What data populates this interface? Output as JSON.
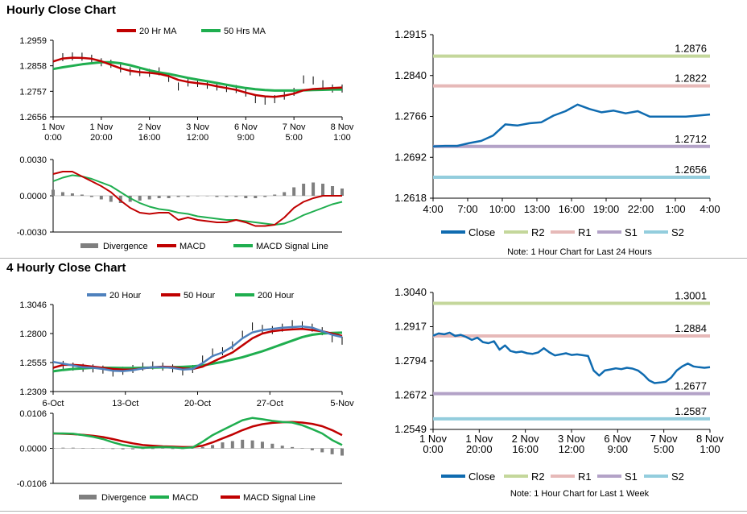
{
  "sections": {
    "hourly_title": "Hourly Close Chart",
    "four_hourly_title": "4 Hourly Close Chart"
  },
  "colors": {
    "red": "#c00000",
    "green": "#1fae4f",
    "blue": "#4f81bd",
    "navy": "#0f6bb0",
    "r2": "#c4d79b",
    "r1": "#e6b9b8",
    "s1": "#b3a2c7",
    "s2": "#93cddd",
    "divergence": "#7f7f7f",
    "price": "#000000"
  },
  "chart_data": [
    {
      "id": "hourly_price",
      "type": "line",
      "legend": [
        "20 Hr MA",
        "50 Hrs MA"
      ],
      "yticks": [
        "1.2959",
        "1.2858",
        "1.2757",
        "1.2656"
      ],
      "ylim": [
        1.2656,
        1.2959
      ],
      "xticks": [
        [
          "1 Nov",
          "0:00"
        ],
        [
          "1 Nov",
          "20:00"
        ],
        [
          "2 Nov",
          "16:00"
        ],
        [
          "3 Nov",
          "12:00"
        ],
        [
          "6 Nov",
          "9:00"
        ],
        [
          "7 Nov",
          "5:00"
        ],
        [
          "8 Nov",
          "1:00"
        ]
      ],
      "series": [
        {
          "name": "Close",
          "color": "price",
          "values": [
            1.2885,
            1.2892,
            1.2895,
            1.2894,
            1.2886,
            1.2872,
            1.2866,
            1.2848,
            1.2836,
            1.2833,
            1.283,
            1.2836,
            1.281,
            1.2776,
            1.2792,
            1.279,
            1.2783,
            1.2776,
            1.277,
            1.2766,
            1.2752,
            1.2726,
            1.272,
            1.2726,
            1.274,
            1.2755,
            1.2804,
            1.28,
            1.2785,
            1.2768,
            1.2768
          ]
        },
        {
          "name": "20 Hr MA",
          "color": "red",
          "values": [
            1.2875,
            1.2887,
            1.289,
            1.2889,
            1.2886,
            1.2876,
            1.2862,
            1.2848,
            1.2838,
            1.2833,
            1.283,
            1.2826,
            1.2817,
            1.2802,
            1.2794,
            1.2789,
            1.2785,
            1.2777,
            1.277,
            1.2763,
            1.2752,
            1.2742,
            1.2737,
            1.2735,
            1.274,
            1.2748,
            1.2761,
            1.2766,
            1.2768,
            1.277,
            1.2772
          ]
        },
        {
          "name": "50 Hrs MA",
          "color": "green",
          "values": [
            1.2845,
            1.2852,
            1.2858,
            1.2864,
            1.2868,
            1.2872,
            1.2872,
            1.2868,
            1.286,
            1.285,
            1.284,
            1.2832,
            1.2826,
            1.2818,
            1.281,
            1.2803,
            1.2797,
            1.279,
            1.2783,
            1.2776,
            1.277,
            1.2765,
            1.2762,
            1.276,
            1.276,
            1.276,
            1.2761,
            1.2762,
            1.2763,
            1.2764,
            1.2764
          ]
        }
      ]
    },
    {
      "id": "hourly_macd",
      "type": "line",
      "legend": [
        "Divergence",
        "MACD",
        "MACD Signal Line"
      ],
      "yticks": [
        "0.0030",
        "0.0000",
        "-0.0030"
      ],
      "ylim": [
        -0.003,
        0.003
      ],
      "series": [
        {
          "name": "Divergence",
          "color": "divergence",
          "values": [
            0.0005,
            0.0003,
            0.0002,
            0.0001,
            -0.0001,
            -0.0003,
            -0.0005,
            -0.0006,
            -0.0005,
            -0.0004,
            -0.0003,
            -0.0002,
            -0.0002,
            -0.0001,
            -0.0001,
            0.0,
            0.0,
            -0.0001,
            -0.0001,
            -0.0001,
            -0.0002,
            -0.0002,
            -0.0001,
            0.0001,
            0.0003,
            0.0007,
            0.001,
            0.0011,
            0.001,
            0.0008,
            0.0006
          ]
        },
        {
          "name": "MACD",
          "color": "red",
          "values": [
            0.0018,
            0.002,
            0.002,
            0.0016,
            0.0012,
            0.0008,
            0.0003,
            -0.0004,
            -0.001,
            -0.0014,
            -0.0015,
            -0.0014,
            -0.0014,
            -0.002,
            -0.0018,
            -0.002,
            -0.0021,
            -0.0022,
            -0.0022,
            -0.002,
            -0.0022,
            -0.0025,
            -0.0025,
            -0.0024,
            -0.0018,
            -0.001,
            -0.0005,
            -0.0002,
            0.0,
            0.0,
            0.0
          ]
        },
        {
          "name": "MACD Signal Line",
          "color": "green",
          "values": [
            0.0012,
            0.0015,
            0.0017,
            0.0016,
            0.0014,
            0.0011,
            0.0008,
            0.0003,
            -0.0002,
            -0.0006,
            -0.0009,
            -0.0011,
            -0.0012,
            -0.0014,
            -0.0015,
            -0.0017,
            -0.0018,
            -0.0019,
            -0.002,
            -0.002,
            -0.0021,
            -0.0022,
            -0.0023,
            -0.0024,
            -0.0023,
            -0.002,
            -0.0016,
            -0.0013,
            -0.001,
            -0.0007,
            -0.0005
          ]
        }
      ]
    },
    {
      "id": "hourly_levels",
      "type": "line",
      "yticks": [
        "1.2915",
        "1.2840",
        "1.2766",
        "1.2692",
        "1.2618"
      ],
      "ylim": [
        1.2618,
        1.2915
      ],
      "xticks": [
        "4:00",
        "7:00",
        "10:00",
        "13:00",
        "16:00",
        "19:00",
        "22:00",
        "1:00",
        "4:00"
      ],
      "legend": [
        "Close",
        "R2",
        "R1",
        "S1",
        "S2"
      ],
      "levels": [
        {
          "name": "R2",
          "value": 1.2876,
          "label": "1.2876"
        },
        {
          "name": "R1",
          "value": 1.2822,
          "label": "1.2822"
        },
        {
          "name": "S1",
          "value": 1.2712,
          "label": "1.2712"
        },
        {
          "name": "S2",
          "value": 1.2656,
          "label": "1.2656"
        }
      ],
      "series": [
        {
          "name": "Close",
          "color": "navy",
          "values": [
            1.2712,
            1.2713,
            1.2713,
            1.2718,
            1.2722,
            1.2732,
            1.2752,
            1.275,
            1.2754,
            1.2756,
            1.2768,
            1.2776,
            1.2788,
            1.278,
            1.2774,
            1.2777,
            1.2772,
            1.2776,
            1.2766,
            1.2766,
            1.2766,
            1.2766,
            1.2768,
            1.277
          ]
        }
      ],
      "note": "Note: 1 Hour Chart for Last 24 Hours"
    },
    {
      "id": "four_hourly_price",
      "type": "line",
      "legend": [
        "20 Hour",
        "50 Hour",
        "200 Hour"
      ],
      "yticks": [
        "1.3046",
        "1.2800",
        "1.2555",
        "1.2309"
      ],
      "ylim": [
        1.2309,
        1.3046
      ],
      "xticks": [
        "6-Oct",
        "13-Oct",
        "20-Oct",
        "27-Oct",
        "5-Nov"
      ],
      "series": [
        {
          "name": "Close",
          "color": "price",
          "values": [
            1.2575,
            1.2535,
            1.252,
            1.251,
            1.2505,
            1.2495,
            1.247,
            1.2485,
            1.25,
            1.252,
            1.253,
            1.252,
            1.2505,
            1.248,
            1.25,
            1.258,
            1.264,
            1.265,
            1.27,
            1.279,
            1.286,
            1.284,
            1.283,
            1.285,
            1.288,
            1.287,
            1.285,
            1.282,
            1.276,
            1.274
          ]
        },
        {
          "name": "20 Hour",
          "color": "blue",
          "values": [
            1.256,
            1.2545,
            1.253,
            1.2515,
            1.251,
            1.25,
            1.2485,
            1.2482,
            1.249,
            1.2505,
            1.2515,
            1.2515,
            1.2508,
            1.2495,
            1.25,
            1.255,
            1.261,
            1.264,
            1.269,
            1.276,
            1.281,
            1.283,
            1.284,
            1.285,
            1.2855,
            1.286,
            1.285,
            1.282,
            1.279,
            1.277
          ]
        },
        {
          "name": "50 Hour",
          "color": "red",
          "values": [
            1.251,
            1.2535,
            1.2535,
            1.253,
            1.252,
            1.251,
            1.25,
            1.2495,
            1.2495,
            1.2505,
            1.2515,
            1.252,
            1.2515,
            1.2505,
            1.25,
            1.252,
            1.256,
            1.26,
            1.264,
            1.27,
            1.276,
            1.28,
            1.282,
            1.283,
            1.2835,
            1.284,
            1.283,
            1.282,
            1.28,
            1.278
          ]
        },
        {
          "name": "200 Hour",
          "color": "green",
          "values": [
            1.248,
            1.2492,
            1.25,
            1.2505,
            1.251,
            1.251,
            1.251,
            1.2508,
            1.2508,
            1.251,
            1.2512,
            1.2514,
            1.2515,
            1.2518,
            1.2522,
            1.253,
            1.2545,
            1.256,
            1.258,
            1.26,
            1.2625,
            1.265,
            1.268,
            1.271,
            1.274,
            1.277,
            1.279,
            1.28,
            1.2805,
            1.2808
          ]
        }
      ]
    },
    {
      "id": "four_hourly_macd",
      "type": "line",
      "legend": [
        "Divergence",
        "MACD",
        "MACD Signal Line"
      ],
      "yticks": [
        "0.0106",
        "0.0000",
        "-0.0106"
      ],
      "ylim": [
        -0.0106,
        0.0106
      ],
      "series": [
        {
          "name": "Divergence",
          "color": "divergence",
          "values": [
            0.0,
            0.0002,
            0.0002,
            0.0001,
            0.0,
            -0.0001,
            -0.0002,
            -0.0003,
            -0.0003,
            -0.0002,
            -0.0002,
            -0.0001,
            -0.0002,
            -0.0002,
            -0.0001,
            0.0004,
            0.001,
            0.0018,
            0.0022,
            0.0026,
            0.0024,
            0.002,
            0.0014,
            0.0008,
            0.0004,
            0.0,
            -0.0006,
            -0.0012,
            -0.0018,
            -0.0022
          ]
        },
        {
          "name": "MACD",
          "color": "green",
          "values": [
            0.0045,
            0.0045,
            0.0044,
            0.004,
            0.0035,
            0.0028,
            0.0018,
            0.001,
            0.0005,
            0.0002,
            0.0003,
            0.0004,
            0.0003,
            0.0001,
            0.0003,
            0.002,
            0.004,
            0.0055,
            0.007,
            0.0085,
            0.0092,
            0.0088,
            0.0083,
            0.008,
            0.0078,
            0.007,
            0.0058,
            0.0045,
            0.0025,
            0.001
          ]
        },
        {
          "name": "MACD Signal Line",
          "color": "red",
          "values": [
            0.0045,
            0.0044,
            0.0043,
            0.0041,
            0.0038,
            0.0034,
            0.0028,
            0.0021,
            0.0015,
            0.001,
            0.0008,
            0.0006,
            0.0005,
            0.0004,
            0.0004,
            0.0008,
            0.0018,
            0.003,
            0.0042,
            0.0055,
            0.0066,
            0.0073,
            0.0077,
            0.0079,
            0.008,
            0.0078,
            0.0074,
            0.0067,
            0.0055,
            0.004
          ]
        }
      ]
    },
    {
      "id": "four_hourly_levels",
      "type": "line",
      "yticks": [
        "1.3040",
        "1.2917",
        "1.2794",
        "1.2672",
        "1.2549"
      ],
      "ylim": [
        1.2549,
        1.304
      ],
      "xticks": [
        [
          "1 Nov",
          "0:00"
        ],
        [
          "1 Nov",
          "20:00"
        ],
        [
          "2 Nov",
          "16:00"
        ],
        [
          "3 Nov",
          "12:00"
        ],
        [
          "6 Nov",
          "9:00"
        ],
        [
          "7 Nov",
          "5:00"
        ],
        [
          "8 Nov",
          "1:00"
        ]
      ],
      "legend": [
        "Close",
        "R2",
        "R1",
        "S1",
        "S2"
      ],
      "levels": [
        {
          "name": "R2",
          "value": 1.3001,
          "label": "1.3001"
        },
        {
          "name": "R1",
          "value": 1.2884,
          "label": "1.2884"
        },
        {
          "name": "S1",
          "value": 1.2677,
          "label": "1.2677"
        },
        {
          "name": "S2",
          "value": 1.2587,
          "label": "1.2587"
        }
      ],
      "series": [
        {
          "name": "Close",
          "color": "navy",
          "values": [
            1.2885,
            1.2893,
            1.289,
            1.2896,
            1.2884,
            1.2888,
            1.288,
            1.287,
            1.2878,
            1.2862,
            1.2858,
            1.2865,
            1.2835,
            1.285,
            1.283,
            1.2825,
            1.2828,
            1.2822,
            1.282,
            1.2825,
            1.284,
            1.2825,
            1.2814,
            1.2818,
            1.2822,
            1.2816,
            1.2818,
            1.2815,
            1.2812,
            1.276,
            1.2742,
            1.276,
            1.2764,
            1.2768,
            1.2765,
            1.277,
            1.2767,
            1.276,
            1.2745,
            1.2725,
            1.2715,
            1.2717,
            1.272,
            1.2735,
            1.276,
            1.2775,
            1.2785,
            1.2775,
            1.2772,
            1.277,
            1.2772
          ]
        }
      ],
      "note": "Note: 1 Hour Chart for  Last 1 Week"
    }
  ]
}
